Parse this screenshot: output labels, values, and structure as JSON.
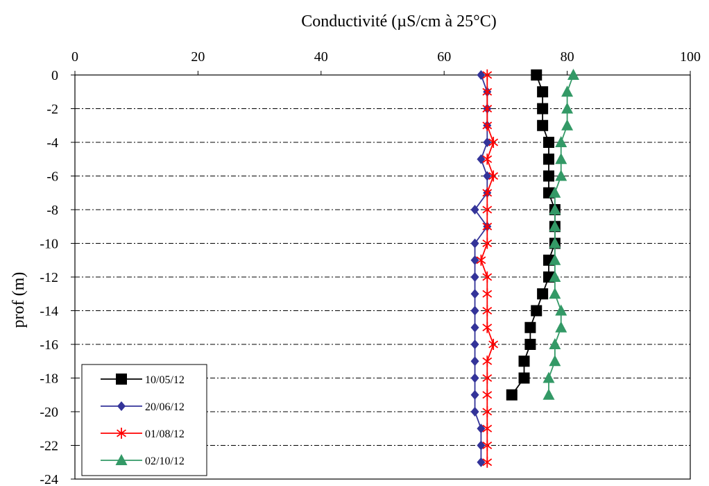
{
  "chart_data": {
    "type": "line",
    "title": "Conductivité (µS/cm à 25°C)",
    "xlabel": "Conductivité (µS/cm à 25°C)",
    "ylabel": "prof (m)",
    "xlim": [
      0,
      100
    ],
    "ylim": [
      -24,
      0
    ],
    "x_axis_position": "top",
    "x_ticks": [
      0,
      20,
      40,
      60,
      80,
      100
    ],
    "y_ticks": [
      0,
      -2,
      -4,
      -6,
      -8,
      -10,
      -12,
      -14,
      -16,
      -18,
      -20,
      -22,
      -24
    ],
    "gridlines": "horizontal dash-dot",
    "legend_placement": "bottom-left",
    "series": [
      {
        "name": "10/05/12",
        "color": "#000000",
        "marker": "square",
        "points": [
          [
            75,
            0
          ],
          [
            76,
            -1
          ],
          [
            76,
            -2
          ],
          [
            76,
            -3
          ],
          [
            77,
            -4
          ],
          [
            77,
            -5
          ],
          [
            77,
            -6
          ],
          [
            77,
            -7
          ],
          [
            78,
            -8
          ],
          [
            78,
            -9
          ],
          [
            78,
            -10
          ],
          [
            77,
            -11
          ],
          [
            77,
            -12
          ],
          [
            76,
            -13
          ],
          [
            75,
            -14
          ],
          [
            74,
            -15
          ],
          [
            74,
            -16
          ],
          [
            73,
            -17
          ],
          [
            73,
            -18
          ],
          [
            71,
            -19
          ]
        ]
      },
      {
        "name": "20/06/12",
        "color": "#333399",
        "marker": "diamond",
        "points": [
          [
            66,
            0
          ],
          [
            67,
            -1
          ],
          [
            67,
            -2
          ],
          [
            67,
            -3
          ],
          [
            67,
            -4
          ],
          [
            66,
            -5
          ],
          [
            67,
            -6
          ],
          [
            67,
            -7
          ],
          [
            65,
            -8
          ],
          [
            67,
            -9
          ],
          [
            65,
            -10
          ],
          [
            65,
            -11
          ],
          [
            65,
            -12
          ],
          [
            65,
            -13
          ],
          [
            65,
            -14
          ],
          [
            65,
            -15
          ],
          [
            65,
            -16
          ],
          [
            65,
            -17
          ],
          [
            65,
            -18
          ],
          [
            65,
            -19
          ],
          [
            65,
            -20
          ],
          [
            66,
            -21
          ],
          [
            66,
            -22
          ],
          [
            66,
            -23
          ]
        ]
      },
      {
        "name": "01/08/12",
        "color": "#ff0000",
        "marker": "asterisk",
        "points": [
          [
            67,
            0
          ],
          [
            67,
            -1
          ],
          [
            67,
            -2
          ],
          [
            67,
            -3
          ],
          [
            68,
            -4
          ],
          [
            67,
            -5
          ],
          [
            68,
            -6
          ],
          [
            67,
            -7
          ],
          [
            67,
            -8
          ],
          [
            67,
            -9
          ],
          [
            67,
            -10
          ],
          [
            66,
            -11
          ],
          [
            67,
            -12
          ],
          [
            67,
            -13
          ],
          [
            67,
            -14
          ],
          [
            67,
            -15
          ],
          [
            68,
            -16
          ],
          [
            67,
            -17
          ],
          [
            67,
            -18
          ],
          [
            67,
            -19
          ],
          [
            67,
            -20
          ],
          [
            67,
            -21
          ],
          [
            67,
            -22
          ],
          [
            67,
            -23
          ]
        ]
      },
      {
        "name": "02/10/12",
        "color": "#339966",
        "marker": "triangle",
        "points": [
          [
            81,
            0
          ],
          [
            80,
            -1
          ],
          [
            80,
            -2
          ],
          [
            80,
            -3
          ],
          [
            79,
            -4
          ],
          [
            79,
            -5
          ],
          [
            79,
            -6
          ],
          [
            78,
            -7
          ],
          [
            78,
            -8
          ],
          [
            78,
            -9
          ],
          [
            78,
            -10
          ],
          [
            78,
            -11
          ],
          [
            78,
            -12
          ],
          [
            78,
            -13
          ],
          [
            79,
            -14
          ],
          [
            79,
            -15
          ],
          [
            78,
            -16
          ],
          [
            78,
            -17
          ],
          [
            77,
            -18
          ],
          [
            77,
            -19
          ]
        ]
      }
    ]
  }
}
